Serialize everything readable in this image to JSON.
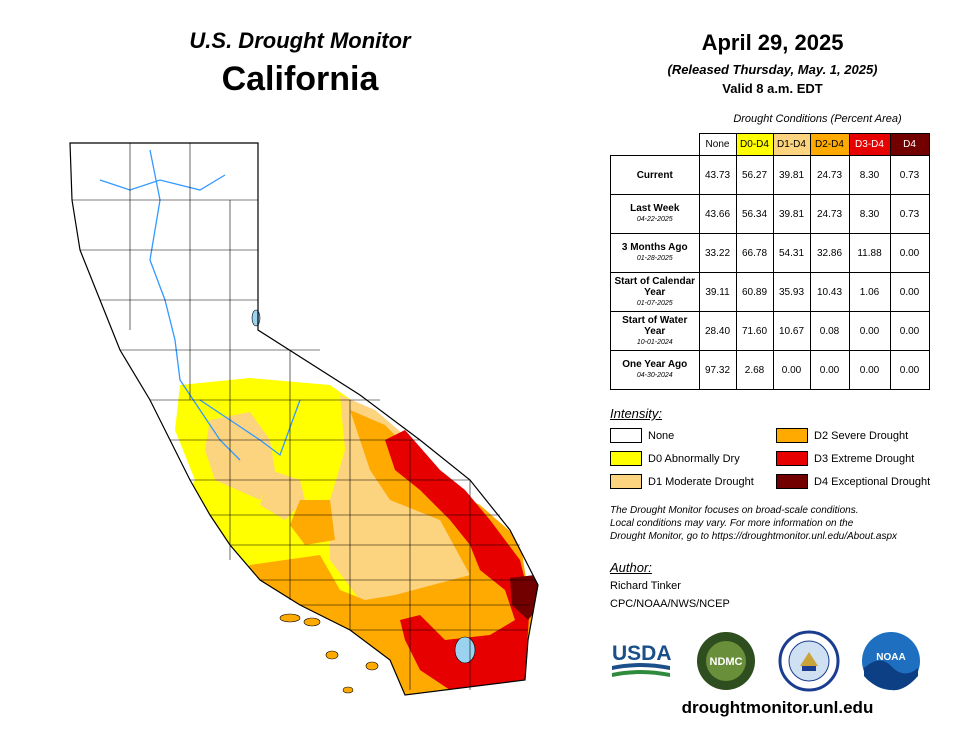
{
  "header": {
    "title": "U.S. Drought Monitor",
    "state": "California"
  },
  "date": {
    "main": "April 29, 2025",
    "released": "(Released Thursday, May. 1, 2025)",
    "valid": "Valid 8 a.m. EDT"
  },
  "table": {
    "caption": "Drought Conditions (Percent Area)",
    "columns": [
      "None",
      "D0-D4",
      "D1-D4",
      "D2-D4",
      "D3-D4",
      "D4"
    ],
    "rows": [
      {
        "label": "Current",
        "sub": "",
        "values": [
          "43.73",
          "56.27",
          "39.81",
          "24.73",
          "8.30",
          "0.73"
        ]
      },
      {
        "label": "Last Week",
        "sub": "04-22-2025",
        "values": [
          "43.66",
          "56.34",
          "39.81",
          "24.73",
          "8.30",
          "0.73"
        ]
      },
      {
        "label": "3 Months Ago",
        "sub": "01-28-2025",
        "values": [
          "33.22",
          "66.78",
          "54.31",
          "32.86",
          "11.88",
          "0.00"
        ]
      },
      {
        "label": "Start of Calendar Year",
        "sub": "01-07-2025",
        "values": [
          "39.11",
          "60.89",
          "35.93",
          "10.43",
          "1.06",
          "0.00"
        ]
      },
      {
        "label": "Start of Water Year",
        "sub": "10-01-2024",
        "values": [
          "28.40",
          "71.60",
          "10.67",
          "0.08",
          "0.00",
          "0.00"
        ]
      },
      {
        "label": "One Year Ago",
        "sub": "04-30-2024",
        "values": [
          "97.32",
          "2.68",
          "0.00",
          "0.00",
          "0.00",
          "0.00"
        ]
      }
    ]
  },
  "legend": {
    "title": "Intensity:",
    "items": [
      {
        "label": "None",
        "color": "#ffffff"
      },
      {
        "label": "D0 Abnormally Dry",
        "color": "#ffff00"
      },
      {
        "label": "D1 Moderate Drought",
        "color": "#fcd37f"
      },
      {
        "label": "D2 Severe Drought",
        "color": "#ffaa00"
      },
      {
        "label": "D3 Extreme Drought",
        "color": "#e60000"
      },
      {
        "label": "D4 Exceptional Drought",
        "color": "#730000"
      }
    ]
  },
  "note": {
    "line1": "The Drought Monitor focuses on broad-scale conditions.",
    "line2": "Local conditions may vary. For more information on the",
    "line3": "Drought Monitor, go to https://droughtmonitor.unl.edu/About.aspx"
  },
  "author": {
    "title": "Author:",
    "name": "Richard Tinker",
    "org": "CPC/NOAA/NWS/NCEP"
  },
  "logos": {
    "usda": "USDA",
    "ndmc": "NDMC",
    "noaa": "NOAA"
  },
  "footer": {
    "url": "droughtmonitor.unl.edu"
  }
}
